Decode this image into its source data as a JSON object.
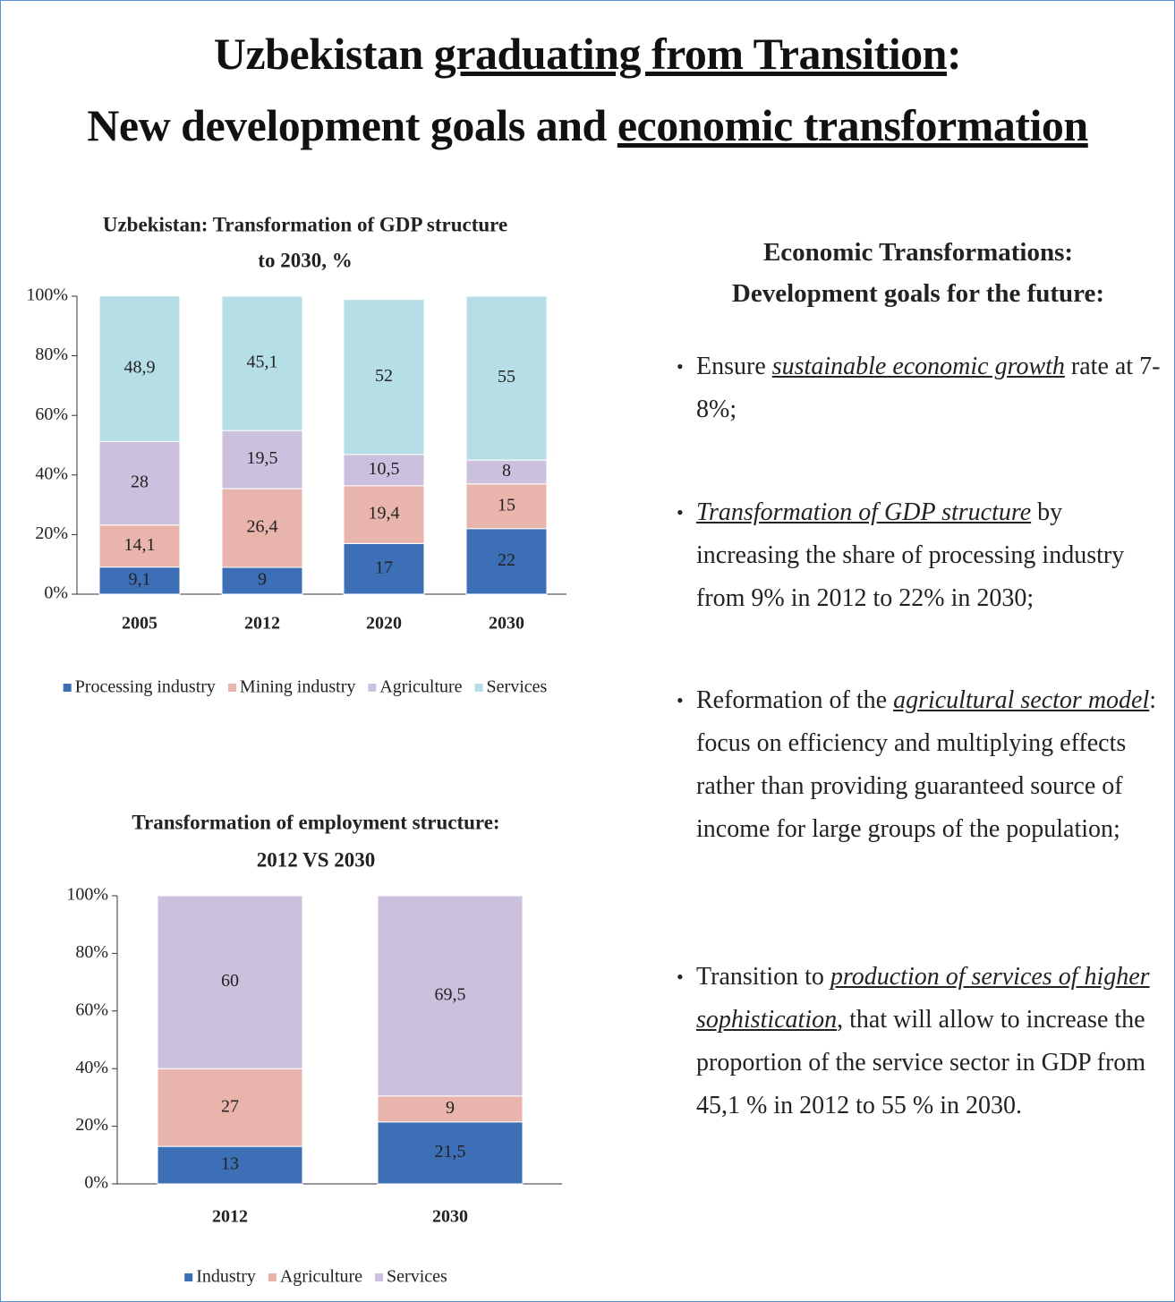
{
  "title": {
    "line1": [
      {
        "text": "Uzbekistan"
      },
      {
        "text": "graduating from Transition",
        "u": true
      },
      {
        "text": ":"
      }
    ],
    "line2": [
      {
        "text": "New development goals and"
      },
      {
        "text": "economic transformation",
        "u": true
      }
    ]
  },
  "chart_data": [
    {
      "type": "stacked_bar",
      "title": [
        "Uzbekistan: Transformation of GDP structure",
        "to 2030, %"
      ],
      "categories": [
        "2005",
        "2012",
        "2020",
        "2030"
      ],
      "ylim": [
        0,
        100
      ],
      "yticks": [
        {
          "value": 0,
          "label": "0%"
        },
        {
          "value": 20,
          "label": "20%"
        },
        {
          "value": 40,
          "label": "40%"
        },
        {
          "value": 60,
          "label": "60%"
        },
        {
          "value": 80,
          "label": "80%"
        },
        {
          "value": 100,
          "label": "100%"
        }
      ],
      "series": [
        {
          "name": "Processing industry",
          "color": "#3c6fb6",
          "values": [
            9.1,
            9,
            17,
            22
          ],
          "value_labels": [
            "9,1",
            "9",
            "17",
            "22"
          ]
        },
        {
          "name": "Mining industry",
          "color": "#e9b4ac",
          "values": [
            14.1,
            26.4,
            19.4,
            15
          ],
          "value_labels": [
            "14,1",
            "26,4",
            "19,4",
            "15"
          ]
        },
        {
          "name": "Agriculture",
          "color": "#cbc1de",
          "values": [
            28,
            19.5,
            10.5,
            8
          ],
          "value_labels": [
            "28",
            "19,5",
            "10,5",
            "8"
          ]
        },
        {
          "name": "Services",
          "color": "#b5dee7",
          "values": [
            48.9,
            45.1,
            52,
            55
          ],
          "value_labels": [
            "48,9",
            "45,1",
            "52",
            "55"
          ]
        }
      ]
    },
    {
      "type": "stacked_bar",
      "title": [
        "Transformation of employment structure:",
        "2012 VS 2030"
      ],
      "categories": [
        "2012",
        "2030"
      ],
      "ylim": [
        0,
        100
      ],
      "yticks": [
        {
          "value": 0,
          "label": "0%"
        },
        {
          "value": 20,
          "label": "20%"
        },
        {
          "value": 40,
          "label": "40%"
        },
        {
          "value": 60,
          "label": "60%"
        },
        {
          "value": 80,
          "label": "80%"
        },
        {
          "value": 100,
          "label": "100%"
        }
      ],
      "series": [
        {
          "name": "Industry",
          "color": "#3c6fb6",
          "values": [
            13,
            21.5
          ],
          "value_labels": [
            "13",
            "21,5"
          ]
        },
        {
          "name": "Agriculture",
          "color": "#e9b4ac",
          "values": [
            27,
            9
          ]
        },
        {
          "name": "Services",
          "color": "#cbc1de",
          "values": [
            60,
            69.5
          ],
          "value_labels": [
            "60",
            "69,5"
          ]
        }
      ]
    }
  ],
  "goals": {
    "heading": [
      "Economic Transformations:",
      "Development goals for the future:"
    ],
    "bullets": [
      [
        {
          "text": "Ensure"
        },
        {
          "text": "sustainable economic growth",
          "em": true
        },
        {
          "text": "rate at 7-8%;"
        }
      ],
      [
        {
          "text": "Transformation of GDP structure",
          "em": true
        },
        {
          "text": "by increasing the share of processing industry from 9% in 2012 to 22% in 2030;"
        }
      ],
      [
        {
          "text": "Reformation of the"
        },
        {
          "text": "agricultural sector model",
          "em": true
        },
        {
          "text": ": focus on efficiency and multiplying effects rather than providing guaranteed source of income for large groups of the population;"
        }
      ],
      [
        {
          "text": "Transition to"
        },
        {
          "text": "production of services of higher sophistication",
          "em": true
        },
        {
          "text": ", that will allow to increase the proportion of the service sector in GDP from 45,1 % in 2012 to 55 % in 2030."
        }
      ]
    ]
  }
}
